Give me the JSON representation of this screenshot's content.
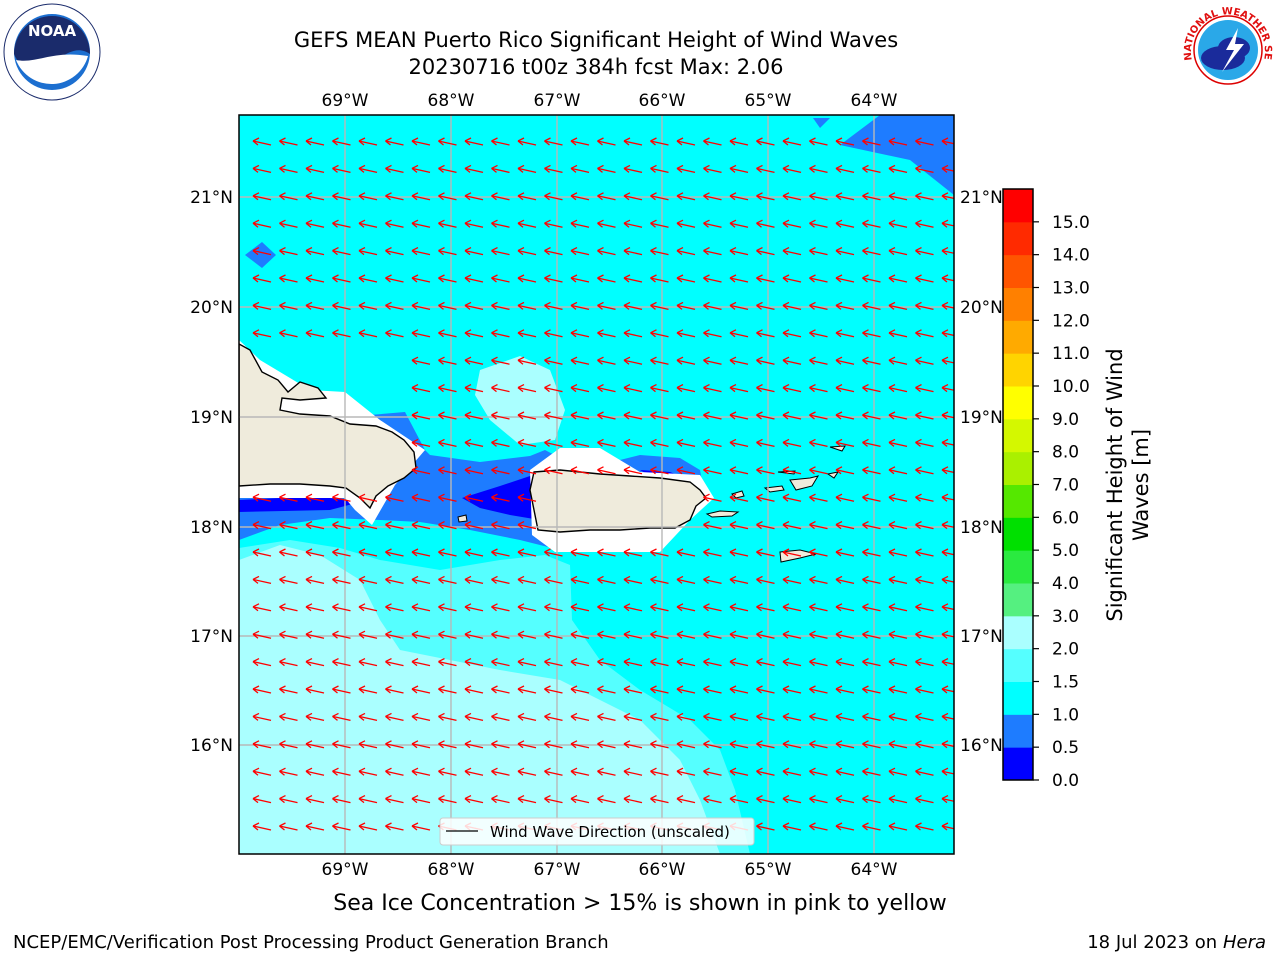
{
  "title": {
    "line1": "GEFS MEAN Puerto Rico Significant Height of Wind Waves",
    "line2": "20230716 t00z 384h fcst   Max: 2.06"
  },
  "map": {
    "lon_labels": [
      "69°W",
      "68°W",
      "67°W",
      "66°W",
      "65°W",
      "64°W"
    ],
    "lat_labels": [
      "21°N",
      "20°N",
      "19°N",
      "18°N",
      "17°N",
      "16°N"
    ],
    "legend_label": "Wind Wave Direction (unscaled)",
    "arrow_color": "#ff0000",
    "land_color": "#efebdc",
    "colors": {
      "c0_05": "#0000ff",
      "c05_1": "#1e7cff",
      "c1_15": "#00ffff",
      "c15_2": "#55ffff",
      "c2_3": "#aaffff"
    }
  },
  "colorbar": {
    "label": "Significant Height of Wind Waves [m]",
    "ticks": [
      "0.0",
      "0.5",
      "1.0",
      "1.5",
      "2.0",
      "3.0",
      "4.0",
      "5.0",
      "6.0",
      "7.0",
      "8.0",
      "9.0",
      "10.0",
      "11.0",
      "12.0",
      "13.0",
      "14.0",
      "15.0"
    ],
    "colors": [
      "#0000ff",
      "#1e7cff",
      "#00ffff",
      "#55ffff",
      "#aaffff",
      "#55f080",
      "#2aea40",
      "#00e000",
      "#55e800",
      "#aaf000",
      "#d4f800",
      "#ffff00",
      "#ffd400",
      "#ffaa00",
      "#ff8000",
      "#ff5500",
      "#ff2a00",
      "#ff0000"
    ]
  },
  "caption": "Sea Ice Concentration > 15% is shown in pink to yellow",
  "footer": {
    "left": "NCEP/EMC/Verification Post Processing Product Generation Branch",
    "right_prefix": "18 Jul 2023 on ",
    "right_host": "Hera"
  },
  "logos": {
    "noaa_text": "NOAA",
    "nws_text": "NATIONAL WEATHER SERVICE"
  }
}
